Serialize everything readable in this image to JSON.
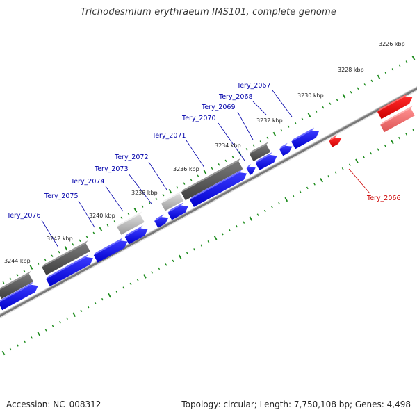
{
  "title": "Trichodesmium erythraeum IMS101, complete genome",
  "footer": {
    "accession": "Accession: NC_008312",
    "topology": "Topology: circular; Length: 7,750,108 bp; Genes: 4,498"
  },
  "kbp_labels": [
    "3226 kbp",
    "3228 kbp",
    "3230 kbp",
    "3232 kbp",
    "3234 kbp",
    "3236 kbp",
    "3238 kbp",
    "3240 kbp",
    "3242 kbp",
    "3244 kbp"
  ],
  "gene_labels": [
    "Tery_2067",
    "Tery_2068",
    "Tery_2069",
    "Tery_2070",
    "Tery_2071",
    "Tery_2072",
    "Tery_2073",
    "Tery_2074",
    "Tery_2075",
    "Tery_2076",
    "Tery_2066"
  ],
  "colors": {
    "forward_gene": "#0000ee",
    "highlight_gene": "#ee0000",
    "cog_dark": "#555555",
    "cog_light": "#bbbbbb",
    "tick": "#1a8a1a",
    "backbone": "#777777",
    "label": "#0000aa",
    "label_highlight": "#cc0000"
  }
}
